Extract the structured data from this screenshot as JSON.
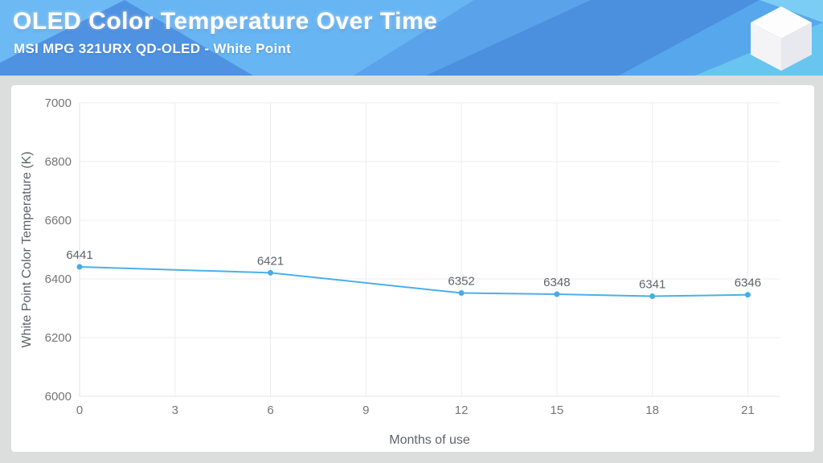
{
  "header": {
    "title": "OLED Color Temperature Over Time",
    "subtitle": "MSI MPG 321URX QD-OLED - White Point",
    "logo": "cube-icon"
  },
  "colors": {
    "page_background": "#dcdddd",
    "card_background": "#ffffff",
    "line": "#4ab0e9",
    "point": "#45ace7",
    "grid": "#ededed",
    "axis_edge": "#e3e3e3",
    "tick_label": "#757575",
    "axis_title": "#5f6368",
    "data_label": "#5f6368",
    "header_palette": [
      "#5fa9ee",
      "#6db9f3",
      "#4f92e2",
      "#67b5f2",
      "#5aa2ea",
      "#4b8fdf",
      "#57a7ec",
      "#68c5f0",
      "#7bcdf4"
    ]
  },
  "chart_data": {
    "type": "line",
    "x": [
      0,
      6,
      12,
      15,
      18,
      21
    ],
    "values": [
      6441,
      6421,
      6352,
      6348,
      6341,
      6346
    ],
    "point_labels": [
      "6441",
      "6421",
      "6352",
      "6348",
      "6341",
      "6346"
    ],
    "xlabel": "Months of use",
    "ylabel": "White Point Color Temperature (K)",
    "x_ticks": [
      0,
      3,
      6,
      9,
      12,
      15,
      18,
      21
    ],
    "y_ticks": [
      6000,
      6200,
      6400,
      6600,
      6800,
      7000
    ],
    "xlim": [
      0,
      22
    ],
    "ylim": [
      6000,
      7000
    ],
    "grid": true,
    "legend": false
  }
}
